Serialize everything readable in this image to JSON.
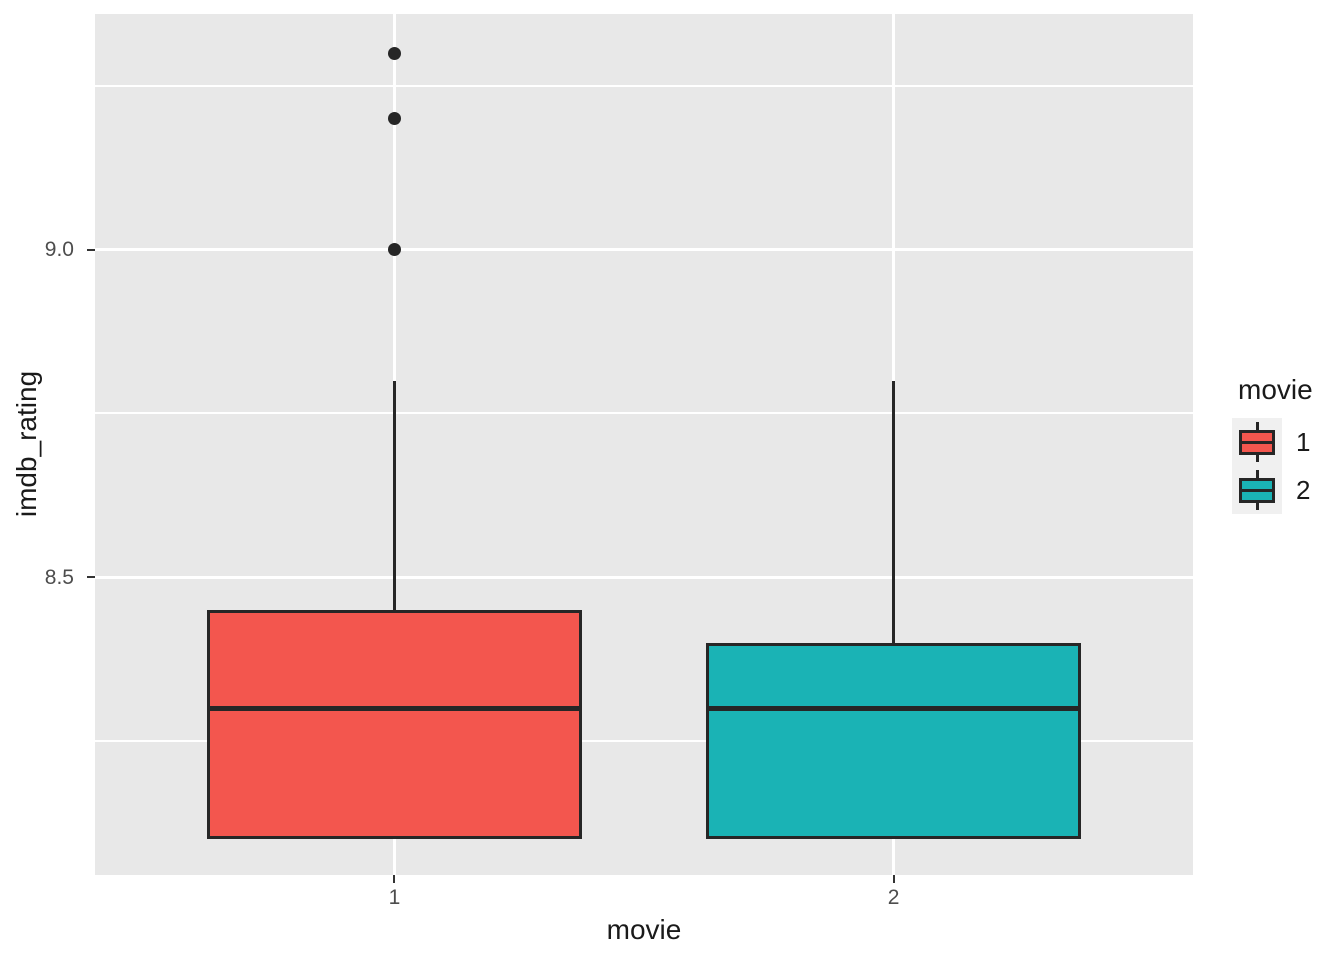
{
  "chart_data": {
    "type": "boxplot",
    "title": "",
    "xlabel": "movie",
    "ylabel": "imdb_rating",
    "categories": [
      "1",
      "2"
    ],
    "ylim": [
      8.045,
      9.36
    ],
    "grid": true,
    "legend_position": "right",
    "box_width_ratio": 0.75,
    "y_major_ticks": [
      {
        "value": 9.0,
        "label": "9.0"
      },
      {
        "value": 8.5,
        "label": "8.5"
      }
    ],
    "y_minor_gridlines": [
      9.25,
      8.75,
      8.25
    ],
    "series": [
      {
        "name": "1",
        "fill_color": "#F3564E",
        "min": 8.1,
        "q1": 8.1,
        "median": 8.3,
        "q3": 8.45,
        "whisker_high": 8.8,
        "outliers": [
          9.0,
          9.2,
          9.3
        ]
      },
      {
        "name": "2",
        "fill_color": "#1AB3B5",
        "min": 8.1,
        "q1": 8.1,
        "median": 8.3,
        "q3": 8.4,
        "whisker_high": 8.8,
        "outliers": []
      }
    ],
    "legend": {
      "title": "movie",
      "entries": [
        {
          "label": "1",
          "color": "#F3564E"
        },
        {
          "label": "2",
          "color": "#1AB3B5"
        }
      ]
    },
    "colors": {
      "panel_background": "#E8E8E8",
      "gridline": "#FFFFFF",
      "box_outline": "#262626",
      "median_line": "#262626",
      "outlier_point": "#262626",
      "tick_mark": "#333333",
      "tick_label": "#4D4D4D",
      "axis_title": "#1A1A1A",
      "legend_key_background": "#F0F0F0"
    }
  }
}
